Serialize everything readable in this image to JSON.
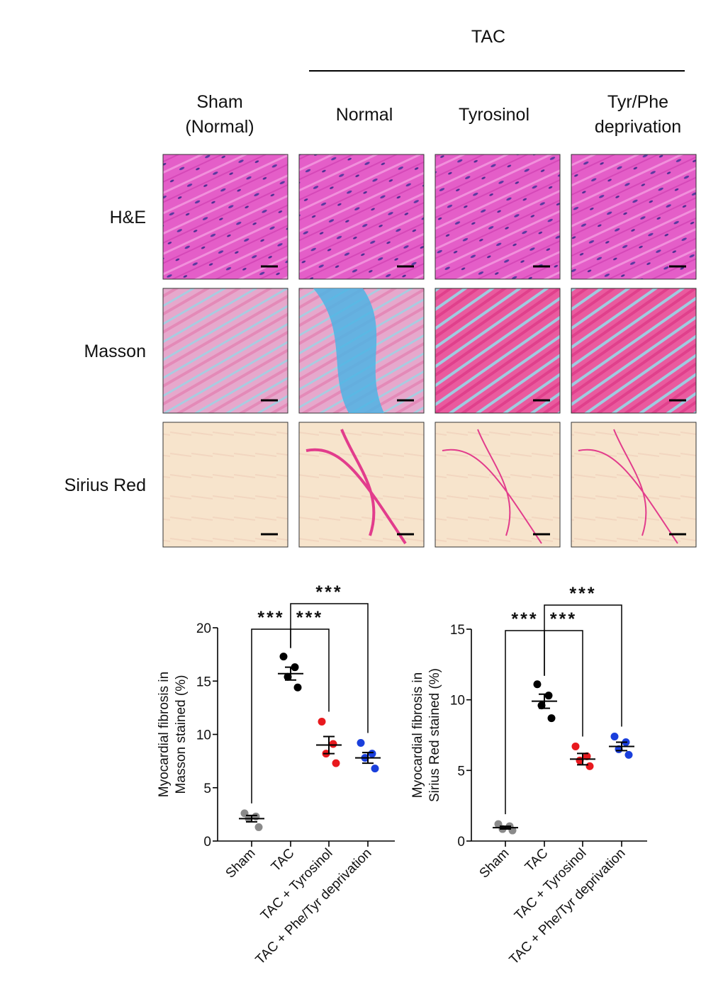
{
  "figure": {
    "group_label": "TAC",
    "columns": [
      [
        "Sham",
        "(Normal)"
      ],
      [
        "Normal"
      ],
      [
        "Tyrosinol"
      ],
      [
        "Tyr/Phe",
        "deprivation"
      ]
    ],
    "rows": [
      "H&E",
      "Masson",
      "Sirius Red"
    ]
  },
  "chart_data": [
    {
      "type": "dot",
      "y_label": [
        "Myocardial fibrosis in",
        "Masson stained (%)"
      ],
      "categories": [
        "Sham",
        "TAC",
        "TAC + Tyrosinol",
        "TAC + Phe/Tyr deprivation"
      ],
      "colors": [
        "#8a8a8a",
        "#000000",
        "#e8191e",
        "#1a3fdc"
      ],
      "points": [
        [
          2.6,
          2.3,
          2.1,
          1.3
        ],
        [
          17.3,
          16.3,
          15.4,
          14.4
        ],
        [
          11.2,
          9.1,
          8.2,
          7.3
        ],
        [
          9.2,
          8.2,
          7.8,
          6.8
        ]
      ],
      "means": [
        2.1,
        15.7,
        9.0,
        7.8
      ],
      "errors": [
        0.3,
        0.6,
        0.8,
        0.5
      ],
      "comparisons": [
        "***",
        "***",
        "***"
      ],
      "ylim": [
        0,
        20
      ],
      "yticks": [
        0,
        5,
        10,
        15,
        20
      ]
    },
    {
      "type": "dot",
      "y_label": [
        "Myocardial fibrosis in",
        "Sirius Red stained (%)"
      ],
      "categories": [
        "Sham",
        "TAC",
        "TAC + Tyrosinol",
        "TAC + Phe/Tyr deprivation"
      ],
      "colors": [
        "#8a8a8a",
        "#000000",
        "#e8191e",
        "#1a3fdc"
      ],
      "points": [
        [
          1.2,
          1.05,
          0.85,
          0.75
        ],
        [
          11.1,
          10.3,
          9.6,
          8.7
        ],
        [
          6.7,
          6.0,
          5.7,
          5.3
        ],
        [
          7.4,
          7.0,
          6.5,
          6.1
        ]
      ],
      "means": [
        0.95,
        9.9,
        5.8,
        6.7
      ],
      "errors": [
        0.1,
        0.5,
        0.4,
        0.3
      ],
      "comparisons": [
        "***",
        "***",
        "***"
      ],
      "ylim": [
        0,
        15
      ],
      "yticks": [
        0,
        5,
        10,
        15
      ]
    }
  ]
}
